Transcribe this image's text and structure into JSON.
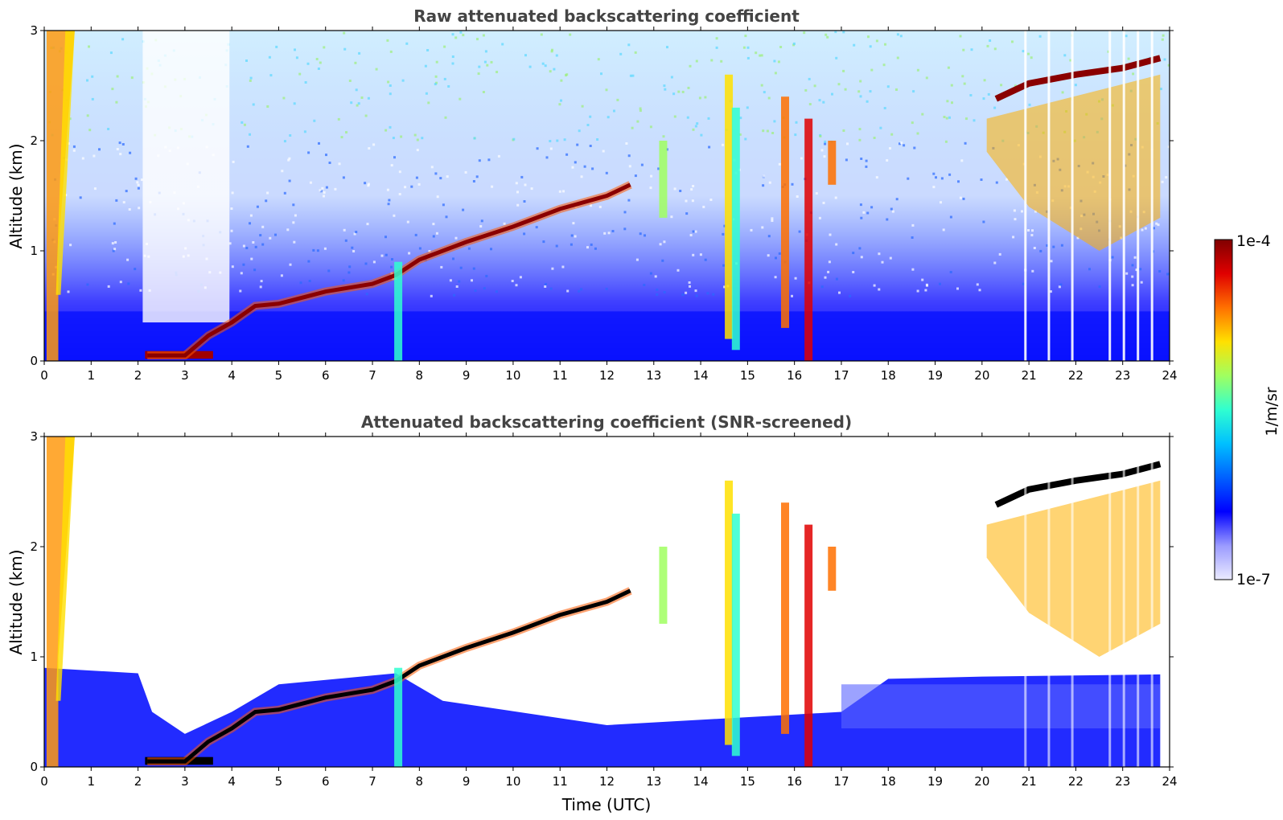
{
  "chart_data": [
    {
      "type": "heatmap",
      "title": "Raw attenuated backscattering coefficient",
      "xlabel": "",
      "ylabel": "Altitude (km)",
      "xlim": [
        0,
        24
      ],
      "ylim": [
        0,
        3
      ],
      "xticks": [
        "0",
        "1",
        "2",
        "3",
        "4",
        "5",
        "6",
        "7",
        "8",
        "9",
        "10",
        "11",
        "12",
        "13",
        "14",
        "15",
        "16",
        "17",
        "18",
        "19",
        "20",
        "21",
        "22",
        "23",
        "24"
      ],
      "yticks": [
        "0",
        "1",
        "2",
        "3"
      ],
      "grid": false,
      "cloud_base_km": {
        "times_utc": [
          2.2,
          3.0,
          3.5,
          4.0,
          4.5,
          5.0,
          6.0,
          7.0,
          7.5,
          8.0,
          9.0,
          10.0,
          11.0,
          12.0,
          12.5
        ],
        "altitudes_km": [
          0.05,
          0.05,
          0.23,
          0.35,
          0.5,
          0.52,
          0.63,
          0.7,
          0.78,
          0.92,
          1.08,
          1.22,
          1.38,
          1.5,
          1.6
        ]
      },
      "upper_cloud_top_km": {
        "times_utc": [
          20.3,
          21.0,
          22.0,
          23.0,
          23.8
        ],
        "altitudes_km": [
          2.38,
          2.52,
          2.6,
          2.66,
          2.75
        ]
      }
    },
    {
      "type": "heatmap",
      "title": "Attenuated backscattering coefficient (SNR-screened)",
      "xlabel": "Time (UTC)",
      "ylabel": "Altitude (km)",
      "xlim": [
        0,
        24
      ],
      "ylim": [
        0,
        3
      ],
      "xticks": [
        "0",
        "1",
        "2",
        "3",
        "4",
        "5",
        "6",
        "7",
        "8",
        "9",
        "10",
        "11",
        "12",
        "13",
        "14",
        "15",
        "16",
        "17",
        "18",
        "19",
        "20",
        "21",
        "22",
        "23",
        "24"
      ],
      "yticks": [
        "0",
        "1",
        "2",
        "3"
      ],
      "grid": false
    }
  ],
  "colorbar": {
    "label": "1/m/sr",
    "max_label": "1e-4",
    "min_label": "1e-7",
    "colors": [
      "#ebebff",
      "#9a9aff",
      "#0000ff",
      "#0060ff",
      "#00c0ff",
      "#30ffd0",
      "#a0ff60",
      "#ffe000",
      "#ff7000",
      "#e00000",
      "#800000"
    ]
  }
}
